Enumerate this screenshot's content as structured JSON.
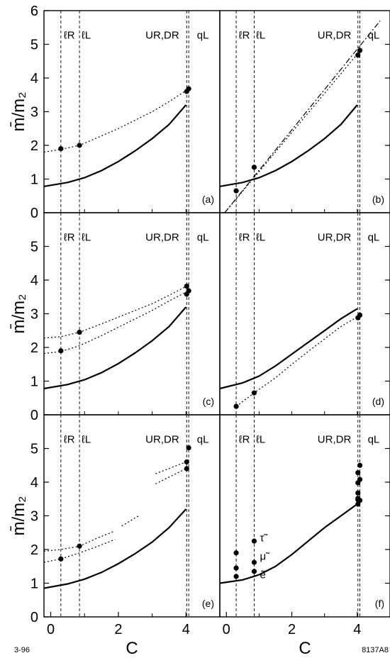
{
  "corner_labels": {
    "left": "3-96",
    "right": "8137A8"
  },
  "chart_data": [
    {
      "type": "line",
      "panel": "(a)",
      "xlabel": "",
      "ylabel": "m̄/m₂",
      "xlim": [
        -0.2,
        5.0
      ],
      "ylim": [
        0,
        6
      ],
      "yticks": [
        0,
        1,
        2,
        3,
        4,
        5,
        6
      ],
      "xticks": [],
      "grid": false,
      "region_labels": [
        {
          "text": "ℓR",
          "x": 0.55,
          "y": 5.3
        },
        {
          "text": "ℓL",
          "x": 1.05,
          "y": 5.3
        },
        {
          "text": "UR,DR",
          "x": 3.3,
          "y": 5.3
        },
        {
          "text": "qL",
          "x": 4.5,
          "y": 5.3
        }
      ],
      "vertical_lines": [
        0.3,
        0.85,
        4.02,
        4.08
      ],
      "series": [
        {
          "style": "solid",
          "x": [
            -0.2,
            0.5,
            1.0,
            1.5,
            2.0,
            2.5,
            3.0,
            3.5,
            4.0
          ],
          "y": [
            0.78,
            0.9,
            1.04,
            1.25,
            1.52,
            1.84,
            2.2,
            2.62,
            3.2
          ]
        },
        {
          "style": "dotted",
          "x": [
            -0.2,
            0.3,
            0.85,
            1.5,
            2.0,
            2.5,
            3.0,
            3.5,
            4.08
          ],
          "y": [
            1.8,
            1.88,
            2.0,
            2.28,
            2.5,
            2.75,
            3.0,
            3.3,
            3.68
          ]
        },
        {
          "style": "points",
          "x": [
            0.3,
            0.85,
            4.02,
            4.08
          ],
          "y": [
            1.9,
            2.0,
            3.6,
            3.68
          ]
        }
      ]
    },
    {
      "type": "line",
      "panel": "(b)",
      "xlabel": "",
      "ylabel": "",
      "xlim": [
        -0.2,
        5.0
      ],
      "ylim": [
        0,
        6
      ],
      "yticks": [],
      "xticks": [],
      "grid": false,
      "region_labels": [
        {
          "text": "ℓR",
          "x": 0.55,
          "y": 5.3
        },
        {
          "text": "ℓL",
          "x": 1.05,
          "y": 5.3
        },
        {
          "text": "UR,DR",
          "x": 3.3,
          "y": 5.3
        },
        {
          "text": "qL",
          "x": 4.5,
          "y": 5.3
        }
      ],
      "vertical_lines": [
        0.3,
        0.85,
        4.02,
        4.08
      ],
      "series": [
        {
          "style": "solid",
          "x": [
            -0.2,
            0.5,
            1.0,
            1.5,
            2.0,
            2.5,
            3.0,
            3.5,
            4.0
          ],
          "y": [
            0.78,
            0.9,
            1.04,
            1.25,
            1.52,
            1.84,
            2.2,
            2.62,
            3.2
          ]
        },
        {
          "style": "dotted",
          "x": [
            -0.05,
            4.08
          ],
          "y": [
            0.0,
            4.8
          ]
        },
        {
          "style": "dashdot",
          "x": [
            -0.05,
            4.7
          ],
          "y": [
            0.0,
            5.7
          ]
        },
        {
          "style": "points",
          "x": [
            0.3,
            0.85,
            4.02,
            4.08
          ],
          "y": [
            0.65,
            1.35,
            4.68,
            4.82
          ]
        }
      ]
    },
    {
      "type": "line",
      "panel": "(c)",
      "xlabel": "",
      "ylabel": "m̄/m₂",
      "xlim": [
        -0.2,
        5.0
      ],
      "ylim": [
        0,
        6
      ],
      "yticks": [
        0,
        1,
        2,
        3,
        4,
        5
      ],
      "xticks": [],
      "grid": false,
      "region_labels": [
        {
          "text": "ℓR",
          "x": 0.55,
          "y": 5.3
        },
        {
          "text": "ℓL",
          "x": 1.05,
          "y": 5.3
        },
        {
          "text": "UR,DR",
          "x": 3.3,
          "y": 5.3
        },
        {
          "text": "qL",
          "x": 4.5,
          "y": 5.3
        }
      ],
      "vertical_lines": [
        0.3,
        0.85,
        4.02,
        4.08
      ],
      "series": [
        {
          "style": "solid",
          "x": [
            -0.2,
            0.5,
            1.0,
            1.5,
            2.0,
            2.5,
            3.0,
            3.5,
            4.0
          ],
          "y": [
            0.78,
            0.9,
            1.04,
            1.25,
            1.52,
            1.84,
            2.2,
            2.62,
            3.2
          ]
        },
        {
          "style": "dotted",
          "x": [
            -0.2,
            0.3,
            0.85,
            1.5,
            2.0,
            2.5,
            3.0,
            3.5,
            4.02
          ],
          "y": [
            2.28,
            2.32,
            2.45,
            2.7,
            2.9,
            3.1,
            3.3,
            3.55,
            3.82
          ]
        },
        {
          "style": "dotted",
          "x": [
            -0.2,
            0.3,
            0.85,
            1.5,
            2.0,
            2.5,
            3.0,
            3.5,
            4.08
          ],
          "y": [
            1.82,
            1.88,
            2.05,
            2.35,
            2.6,
            2.85,
            3.1,
            3.38,
            3.68
          ]
        },
        {
          "style": "points",
          "x": [
            0.3,
            0.85,
            4.02,
            4.02,
            4.08
          ],
          "y": [
            1.9,
            2.45,
            3.82,
            3.58,
            3.68
          ]
        }
      ]
    },
    {
      "type": "line",
      "panel": "(d)",
      "xlabel": "",
      "ylabel": "",
      "xlim": [
        -0.2,
        5.0
      ],
      "ylim": [
        0,
        6
      ],
      "yticks": [],
      "xticks": [],
      "grid": false,
      "region_labels": [
        {
          "text": "ℓR",
          "x": 0.55,
          "y": 5.3
        },
        {
          "text": "ℓL",
          "x": 1.05,
          "y": 5.3
        },
        {
          "text": "UR,DR",
          "x": 3.3,
          "y": 5.3
        },
        {
          "text": "qL",
          "x": 4.5,
          "y": 5.3
        }
      ],
      "vertical_lines": [
        0.3,
        0.85,
        4.02,
        4.08
      ],
      "series": [
        {
          "style": "solid",
          "x": [
            -0.2,
            0.5,
            1.0,
            1.5,
            2.0,
            2.5,
            3.0,
            3.5,
            4.0
          ],
          "y": [
            0.78,
            0.95,
            1.15,
            1.45,
            1.8,
            2.15,
            2.5,
            2.85,
            3.15
          ]
        },
        {
          "style": "dotted",
          "x": [
            0.3,
            0.85,
            1.5,
            2.0,
            2.5,
            3.0,
            3.5,
            4.08
          ],
          "y": [
            0.25,
            0.65,
            1.1,
            1.5,
            1.88,
            2.25,
            2.62,
            2.95
          ]
        },
        {
          "style": "points",
          "x": [
            0.3,
            0.85,
            4.02,
            4.08
          ],
          "y": [
            0.25,
            0.65,
            2.88,
            2.96
          ]
        }
      ]
    },
    {
      "type": "line",
      "panel": "(e)",
      "xlabel": "C",
      "ylabel": "m̄/m₂",
      "xlim": [
        -0.2,
        5.0
      ],
      "ylim": [
        0,
        6
      ],
      "yticks": [
        0,
        1,
        2,
        3,
        4,
        5
      ],
      "xticks": [
        0,
        2,
        4
      ],
      "grid": false,
      "region_labels": [
        {
          "text": "ℓR",
          "x": 0.55,
          "y": 5.3
        },
        {
          "text": "ℓL",
          "x": 1.05,
          "y": 5.3
        },
        {
          "text": "UR,DR",
          "x": 3.3,
          "y": 5.3
        },
        {
          "text": "qL",
          "x": 4.5,
          "y": 5.3
        }
      ],
      "vertical_lines": [
        0.3,
        0.85,
        4.02,
        4.08
      ],
      "series": [
        {
          "style": "solid",
          "x": [
            -0.2,
            0.5,
            1.0,
            1.5,
            2.0,
            2.5,
            3.0,
            3.5,
            4.0
          ],
          "y": [
            0.85,
            0.98,
            1.12,
            1.32,
            1.58,
            1.88,
            2.22,
            2.65,
            3.2
          ]
        },
        {
          "style": "dotted",
          "x": [
            -0.2,
            0.3,
            0.85,
            1.4,
            1.9
          ],
          "y": [
            1.95,
            2.0,
            2.1,
            2.35,
            2.55
          ]
        },
        {
          "style": "dotted",
          "x": [
            -0.2,
            0.3,
            0.85,
            1.4,
            1.9
          ],
          "y": [
            1.62,
            1.72,
            1.9,
            2.1,
            2.3
          ]
        },
        {
          "style": "dotted",
          "x": [
            2.1,
            2.6
          ],
          "y": [
            2.7,
            3.0
          ]
        },
        {
          "style": "dotted",
          "x": [
            3.1,
            4.0
          ],
          "y": [
            4.25,
            4.6
          ]
        },
        {
          "style": "dotted",
          "x": [
            3.1,
            4.0
          ],
          "y": [
            3.95,
            4.4
          ]
        },
        {
          "style": "points",
          "x": [
            0.3,
            0.85,
            4.02,
            4.02,
            4.08
          ],
          "y": [
            1.72,
            2.1,
            4.6,
            4.4,
            5.02
          ]
        }
      ]
    },
    {
      "type": "line",
      "panel": "(f)",
      "xlabel": "C",
      "ylabel": "",
      "xlim": [
        -0.2,
        5.0
      ],
      "ylim": [
        0,
        6
      ],
      "yticks": [],
      "xticks": [
        0,
        2,
        4
      ],
      "grid": false,
      "region_labels": [
        {
          "text": "ℓR",
          "x": 0.55,
          "y": 5.3
        },
        {
          "text": "ℓL",
          "x": 1.05,
          "y": 5.3
        },
        {
          "text": "UR,DR",
          "x": 3.3,
          "y": 5.3
        },
        {
          "text": "qL",
          "x": 4.5,
          "y": 5.3
        }
      ],
      "vertical_lines": [
        0.3,
        0.85,
        4.02,
        4.08
      ],
      "point_labels": [
        {
          "text": "τ̃",
          "x": 0.98,
          "y": 2.35
        },
        {
          "text": "μ̃",
          "x": 0.98,
          "y": 1.8
        },
        {
          "text": "ẽ",
          "x": 0.98,
          "y": 1.25
        }
      ],
      "series": [
        {
          "style": "solid",
          "x": [
            -0.2,
            0.5,
            1.0,
            1.5,
            2.0,
            2.5,
            3.0,
            3.5,
            4.0
          ],
          "y": [
            1.0,
            1.1,
            1.25,
            1.5,
            1.85,
            2.25,
            2.65,
            3.0,
            3.35
          ]
        },
        {
          "style": "points",
          "x": [
            0.3,
            0.3,
            0.3,
            0.85,
            0.85,
            0.85,
            4.02,
            4.02,
            4.02,
            4.02,
            4.02,
            4.02,
            4.08,
            4.08,
            4.08
          ],
          "y": [
            1.9,
            1.45,
            1.2,
            2.25,
            1.62,
            1.35,
            4.28,
            3.98,
            3.68,
            3.52,
            3.35,
            3.48,
            4.5,
            4.08,
            3.46
          ]
        }
      ]
    }
  ]
}
